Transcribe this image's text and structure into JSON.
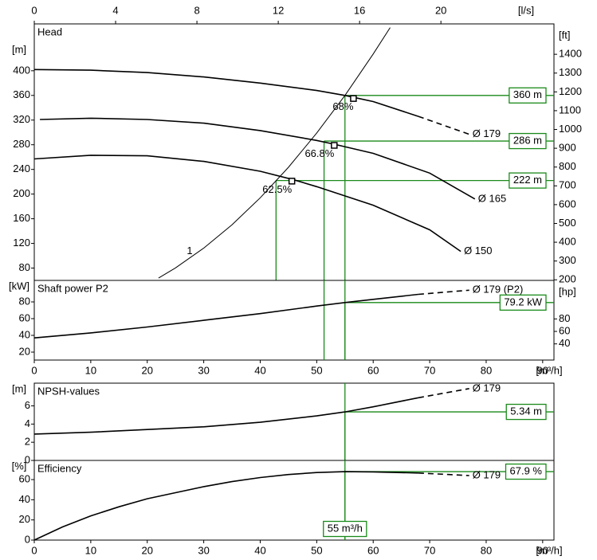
{
  "chart_data": [
    {
      "type": "line",
      "title": "Head",
      "color": "#000000",
      "guide_color": "#1a8a1a",
      "xlim": [
        0,
        92
      ],
      "x2lim": [
        0,
        25.56
      ],
      "x2ticks": [
        0,
        4,
        8,
        12,
        16,
        20
      ],
      "x2label": "[l/s]",
      "ylim": [
        60,
        476
      ],
      "yticks": [
        80,
        120,
        160,
        200,
        240,
        280,
        320,
        360,
        400
      ],
      "ylabel": "[m]",
      "y2lim": [
        196.9,
        1561.7
      ],
      "y2ticks": [
        200,
        300,
        400,
        500,
        600,
        700,
        800,
        900,
        1000,
        1100,
        1200,
        1300,
        1400
      ],
      "y2label": "[ft]",
      "series": [
        {
          "name": "Ø 179",
          "x": [
            0,
            10,
            20,
            30,
            40,
            50,
            55,
            60,
            68
          ],
          "values": [
            402,
            401,
            397,
            390,
            380,
            368,
            360,
            350,
            326
          ],
          "dashed_x": [
            68,
            77
          ],
          "dashed_values": [
            326,
            297
          ]
        },
        {
          "name": "Ø 165",
          "x": [
            1,
            10,
            20,
            30,
            40,
            50,
            53,
            60,
            70,
            78
          ],
          "values": [
            321,
            323,
            321,
            315,
            303,
            287,
            281,
            266,
            234,
            192
          ]
        },
        {
          "name": "Ø 150",
          "x": [
            0,
            10,
            20,
            30,
            40,
            46,
            50,
            60,
            70,
            75.5
          ],
          "values": [
            257,
            263,
            262,
            253,
            237,
            223,
            212,
            182,
            142,
            107
          ]
        }
      ],
      "system_curve": {
        "name": "1",
        "x": [
          22,
          25,
          30,
          35,
          40,
          45,
          50,
          55,
          60,
          63
        ],
        "values": [
          63.8,
          80.3,
          112.3,
          150.2,
          194,
          243.5,
          298.9,
          360,
          427.2,
          470
        ]
      },
      "duty_points": [
        {
          "x": 56.5,
          "y": 355,
          "label": "68%"
        },
        {
          "x": 53.1,
          "y": 279,
          "label": "66.8%"
        },
        {
          "x": 45.6,
          "y": 221,
          "label": "62.5%"
        }
      ],
      "guides": [
        {
          "x": 55,
          "y": 360,
          "label": "360 m"
        },
        {
          "x": 51.3,
          "y": 286,
          "label": "286 m"
        },
        {
          "x": 42.8,
          "y": 222,
          "label": "222 m"
        }
      ]
    },
    {
      "type": "line",
      "title": "Shaft power P2",
      "color": "#000000",
      "guide_color": "#1a8a1a",
      "xlim": [
        0,
        92
      ],
      "xticks": [
        0,
        10,
        20,
        30,
        40,
        50,
        60,
        70,
        80,
        90
      ],
      "xlabel": "[m³/h]",
      "ylim": [
        10.5,
        105.7
      ],
      "yticks": [
        20,
        40,
        60,
        80
      ],
      "ylabel": "[kW]",
      "y2lim": [
        14.1,
        141.7
      ],
      "y2ticks": [
        40,
        60,
        80
      ],
      "y2label": "[hp]",
      "series": [
        {
          "name": "Ø 179 (P2)",
          "x": [
            0,
            10,
            20,
            30,
            40,
            50,
            55,
            60,
            68
          ],
          "values": [
            37,
            43,
            50,
            58,
            66,
            75,
            79.2,
            83,
            89
          ],
          "dashed_x": [
            68,
            77
          ],
          "dashed_values": [
            89,
            94
          ]
        }
      ],
      "vlines": [
        51.3,
        55
      ],
      "guides": [
        {
          "x": 55,
          "y": 79.2,
          "label": "79.2 kW"
        }
      ]
    },
    {
      "type": "line",
      "title": "NPSH-values",
      "color": "#000000",
      "guide_color": "#1a8a1a",
      "xlim": [
        0,
        92
      ],
      "ylim": [
        0,
        8.5
      ],
      "yticks": [
        0,
        2,
        4,
        6
      ],
      "ylabel": "[m]",
      "series": [
        {
          "name": "Ø 179",
          "x": [
            0,
            10,
            20,
            30,
            40,
            50,
            55,
            60,
            68
          ],
          "values": [
            2.9,
            3.1,
            3.4,
            3.7,
            4.2,
            4.9,
            5.34,
            5.9,
            6.9
          ],
          "dashed_x": [
            68,
            77
          ],
          "dashed_values": [
            6.9,
            7.9
          ]
        }
      ],
      "vlines": [
        55
      ],
      "guides": [
        {
          "x": 55,
          "y": 5.34,
          "label": "5.34 m"
        }
      ]
    },
    {
      "type": "line",
      "title": "Efficiency",
      "color": "#000000",
      "guide_color": "#1a8a1a",
      "xlim": [
        0,
        92
      ],
      "xticks": [
        0,
        10,
        20,
        30,
        40,
        50,
        60,
        70,
        80,
        90
      ],
      "xlabel": "[m³/h]",
      "ylim": [
        0,
        79
      ],
      "yticks": [
        0,
        20,
        40,
        60
      ],
      "ylabel": "[%]",
      "series": [
        {
          "name": "Ø 179",
          "x": [
            0,
            5,
            10,
            15,
            20,
            25,
            30,
            35,
            40,
            45,
            50,
            55,
            60,
            68
          ],
          "values": [
            0,
            13,
            24,
            33,
            41,
            47,
            53,
            58,
            62,
            65,
            67,
            67.9,
            67.6,
            66.5
          ],
          "dashed_x": [
            68,
            77
          ],
          "dashed_values": [
            66.5,
            64
          ]
        }
      ],
      "vlines": [
        55
      ],
      "guides": [
        {
          "x": 55,
          "y": 67.9,
          "label": "67.9 %"
        }
      ],
      "x_label_box": {
        "x": 55,
        "label": "55 m³/h"
      }
    }
  ]
}
